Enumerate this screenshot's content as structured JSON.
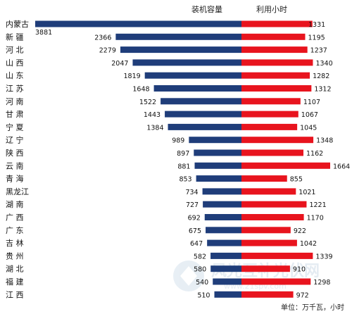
{
  "chart_data": {
    "type": "bar",
    "layout": "back-to-back horizontal bars",
    "categories": [
      "内蒙古",
      "新 疆",
      "河 北",
      "山 西",
      "山 东",
      "江 苏",
      "河 南",
      "甘 肃",
      "宁 夏",
      "辽 宁",
      "陕 西",
      "云 南",
      "青 海",
      "黑龙江",
      "湖 南",
      "广 西",
      "广 东",
      "吉 林",
      "贵 州",
      "湖 北",
      "福 建",
      "江 西"
    ],
    "series": [
      {
        "name": "装机容量",
        "color": "#1f3d7a",
        "direction": "left",
        "values": [
          3881,
          2366,
          2279,
          2047,
          1819,
          1648,
          1522,
          1443,
          1384,
          989,
          897,
          881,
          853,
          734,
          727,
          692,
          675,
          647,
          582,
          580,
          540,
          510
        ]
      },
      {
        "name": "利用小时",
        "color": "#e8141e",
        "direction": "right",
        "values": [
          1331,
          1195,
          1237,
          1340,
          1282,
          1312,
          1107,
          1067,
          1045,
          1348,
          1162,
          1664,
          855,
          1021,
          1221,
          1170,
          922,
          1042,
          1339,
          910,
          1298,
          972
        ]
      }
    ],
    "footnote": "单位：万千瓦，小时",
    "watermark": "风光互补光伏网 www.21spv.com",
    "grid": false
  }
}
